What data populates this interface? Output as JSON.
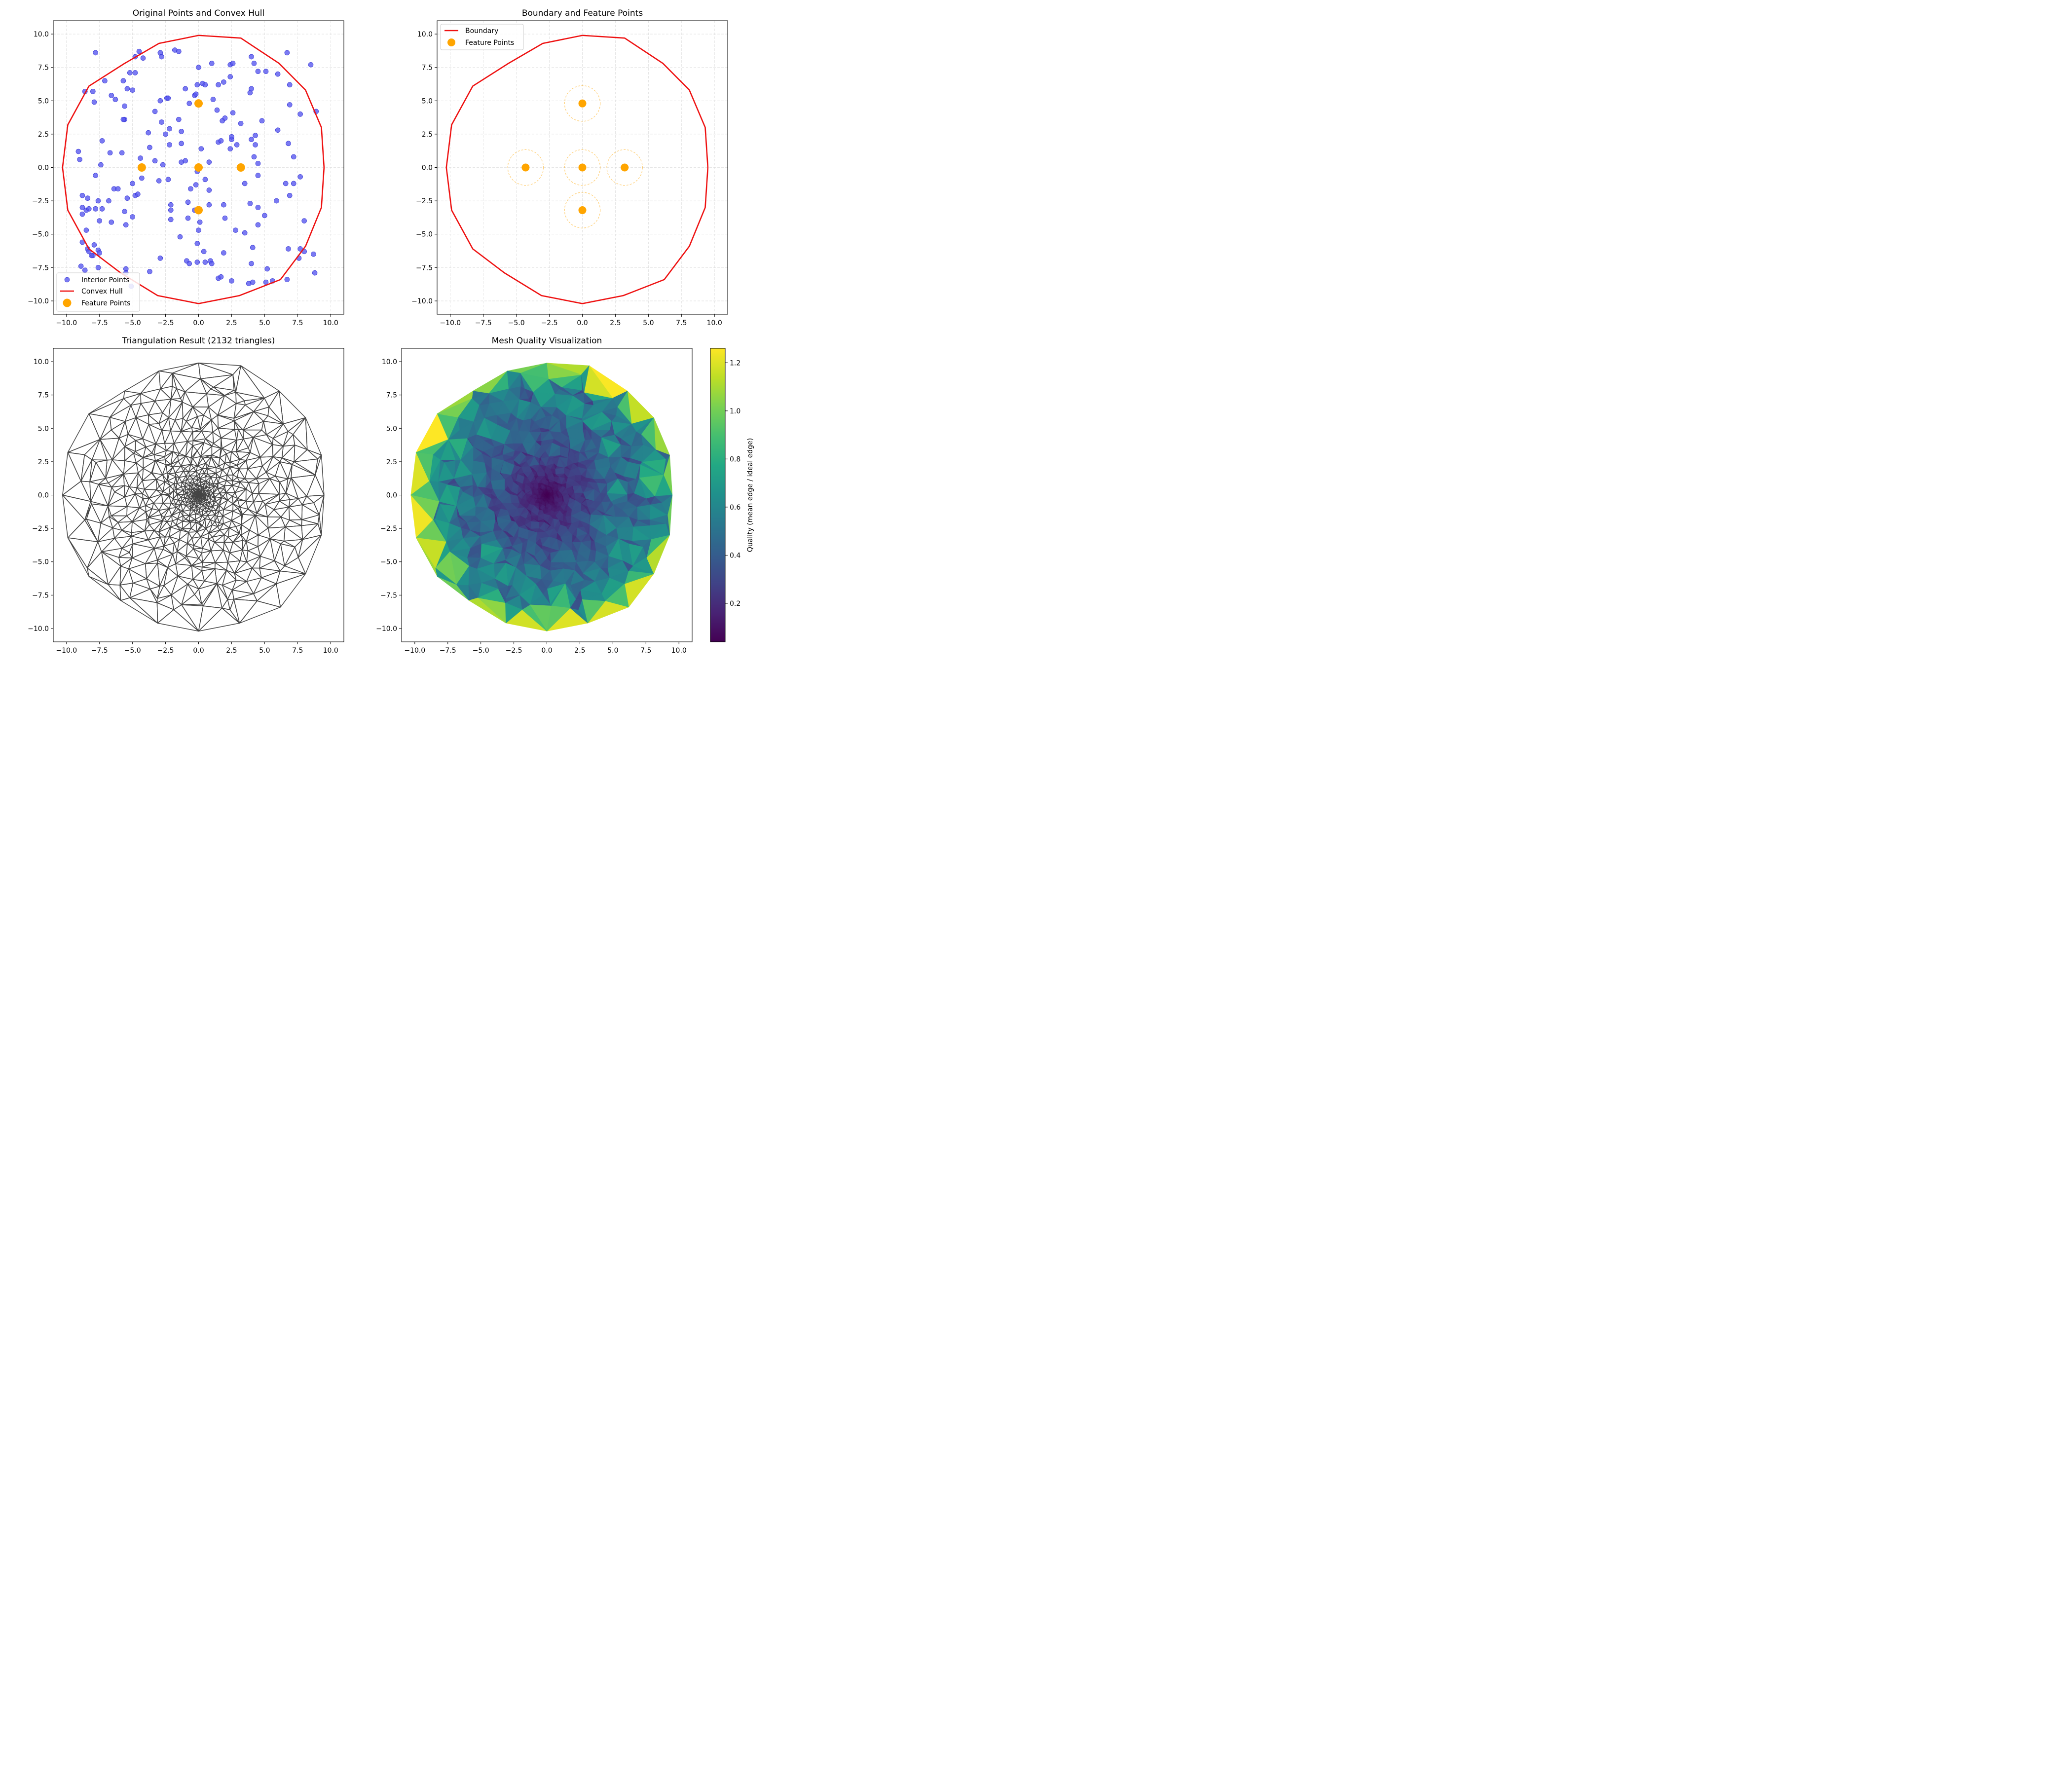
{
  "chart_data": [
    {
      "type": "scatter",
      "title": "Original Points and Convex Hull",
      "xlim": [
        -11,
        11
      ],
      "ylim": [
        -11,
        11
      ],
      "xticks": [
        -10.0,
        -7.5,
        -5.0,
        -2.5,
        0.0,
        2.5,
        5.0,
        7.5,
        10.0
      ],
      "yticks": [
        -10.0,
        -7.5,
        -5.0,
        -2.5,
        0.0,
        2.5,
        5.0,
        7.5,
        10.0
      ],
      "grid": true,
      "legend_position": "lower-left",
      "colors": {
        "interior": "#5555ee",
        "hull": "#ee1111",
        "feature": "#ffa500"
      },
      "series": [
        {
          "name": "Interior Points",
          "points": [
            [
              -7.8,
              8.6
            ],
            [
              -4.5,
              8.7
            ],
            [
              -4.2,
              8.2
            ],
            [
              -2.9,
              8.6
            ],
            [
              -1.8,
              8.8
            ],
            [
              -1.5,
              8.7
            ],
            [
              -2.8,
              8.3
            ],
            [
              -4.8,
              8.3
            ],
            [
              -5.2,
              7.1
            ],
            [
              -4.8,
              7.1
            ],
            [
              -7.1,
              6.5
            ],
            [
              -5.7,
              6.5
            ],
            [
              -6.6,
              5.4
            ],
            [
              -6.3,
              5.1
            ],
            [
              -5.4,
              5.9
            ],
            [
              -5.0,
              5.8
            ],
            [
              -8.6,
              5.7
            ],
            [
              -8.0,
              5.7
            ],
            [
              -7.9,
              4.9
            ],
            [
              -5.6,
              4.6
            ],
            [
              -5.6,
              3.6
            ],
            [
              -5.7,
              3.6
            ],
            [
              -3.3,
              4.2
            ],
            [
              -2.9,
              5.0
            ],
            [
              -2.4,
              5.2
            ],
            [
              -2.3,
              5.2
            ],
            [
              -1.0,
              5.9
            ],
            [
              -0.7,
              4.8
            ],
            [
              -0.3,
              5.4
            ],
            [
              -0.2,
              5.5
            ],
            [
              -0.1,
              6.2
            ],
            [
              0.3,
              6.3
            ],
            [
              0.5,
              6.2
            ],
            [
              0.0,
              7.5
            ],
            [
              1.0,
              7.8
            ],
            [
              1.5,
              6.2
            ],
            [
              1.9,
              6.4
            ],
            [
              2.4,
              6.8
            ],
            [
              2.4,
              7.7
            ],
            [
              2.6,
              7.8
            ],
            [
              4.0,
              8.3
            ],
            [
              4.2,
              7.8
            ],
            [
              4.5,
              7.2
            ],
            [
              5.1,
              7.2
            ],
            [
              6.7,
              8.6
            ],
            [
              8.5,
              7.7
            ],
            [
              6.0,
              7.0
            ],
            [
              6.9,
              6.2
            ],
            [
              3.9,
              5.6
            ],
            [
              4.0,
              5.9
            ],
            [
              1.1,
              5.1
            ],
            [
              1.4,
              4.3
            ],
            [
              1.8,
              3.5
            ],
            [
              2.0,
              3.7
            ],
            [
              2.6,
              4.1
            ],
            [
              3.2,
              3.3
            ],
            [
              4.8,
              3.5
            ],
            [
              6.0,
              2.8
            ],
            [
              6.9,
              4.7
            ],
            [
              7.7,
              4.0
            ],
            [
              8.9,
              4.2
            ],
            [
              6.8,
              1.8
            ],
            [
              7.2,
              0.8
            ],
            [
              -7.3,
              2.0
            ],
            [
              -6.7,
              1.1
            ],
            [
              -5.8,
              1.1
            ],
            [
              -3.8,
              2.6
            ],
            [
              -2.8,
              3.4
            ],
            [
              -2.5,
              2.5
            ],
            [
              -2.2,
              2.9
            ],
            [
              -2.2,
              1.7
            ],
            [
              -1.5,
              3.6
            ],
            [
              -1.3,
              2.7
            ],
            [
              -1.3,
              1.8
            ],
            [
              0.2,
              1.4
            ],
            [
              1.5,
              1.9
            ],
            [
              1.7,
              2.0
            ],
            [
              2.4,
              1.4
            ],
            [
              2.5,
              2.1
            ],
            [
              2.5,
              2.3
            ],
            [
              2.9,
              1.7
            ],
            [
              4.0,
              2.1
            ],
            [
              4.3,
              2.4
            ],
            [
              4.3,
              1.7
            ],
            [
              4.2,
              0.8
            ],
            [
              4.5,
              0.3
            ],
            [
              -9.1,
              1.2
            ],
            [
              -9.0,
              0.6
            ],
            [
              -7.4,
              0.2
            ],
            [
              -4.4,
              0.7
            ],
            [
              -3.7,
              1.5
            ],
            [
              -3.3,
              0.5
            ],
            [
              -2.7,
              0.2
            ],
            [
              -1.3,
              0.4
            ],
            [
              -1.0,
              0.5
            ],
            [
              0.8,
              0.4
            ],
            [
              -4.3,
              -0.8
            ],
            [
              -3.0,
              -1.0
            ],
            [
              -2.3,
              -0.9
            ],
            [
              -0.1,
              -0.3
            ],
            [
              0.5,
              -0.9
            ],
            [
              -0.2,
              -1.3
            ],
            [
              -0.6,
              -1.6
            ],
            [
              0.8,
              -1.7
            ],
            [
              -7.8,
              -0.6
            ],
            [
              -6.4,
              -1.6
            ],
            [
              -6.1,
              -1.6
            ],
            [
              -5.0,
              -1.2
            ],
            [
              3.5,
              -1.2
            ],
            [
              4.5,
              -0.6
            ],
            [
              6.6,
              -1.2
            ],
            [
              7.2,
              -1.2
            ],
            [
              7.7,
              -0.7
            ],
            [
              6.9,
              -2.1
            ],
            [
              5.9,
              -2.5
            ],
            [
              -8.8,
              -2.1
            ],
            [
              -8.4,
              -2.3
            ],
            [
              -7.6,
              -2.5
            ],
            [
              -6.8,
              -2.5
            ],
            [
              -5.4,
              -2.3
            ],
            [
              -4.8,
              -2.1
            ],
            [
              -4.6,
              -2.0
            ],
            [
              -2.1,
              -2.8
            ],
            [
              -2.1,
              -3.2
            ],
            [
              -0.8,
              -2.6
            ],
            [
              -0.3,
              -3.2
            ],
            [
              0.8,
              -2.8
            ],
            [
              1.9,
              -2.8
            ],
            [
              3.9,
              -2.7
            ],
            [
              4.5,
              -3.0
            ],
            [
              -8.8,
              -3.0
            ],
            [
              -8.8,
              -3.5
            ],
            [
              -8.5,
              -3.2
            ],
            [
              -8.3,
              -3.1
            ],
            [
              -7.8,
              -3.1
            ],
            [
              -7.3,
              -3.1
            ],
            [
              -5.6,
              -3.3
            ],
            [
              -5.0,
              -3.7
            ],
            [
              -2.1,
              -3.9
            ],
            [
              -0.8,
              -3.8
            ],
            [
              0.1,
              -4.1
            ],
            [
              2.0,
              -3.8
            ],
            [
              5.0,
              -3.6
            ],
            [
              -7.5,
              -4.0
            ],
            [
              -6.6,
              -4.1
            ],
            [
              -5.5,
              -4.3
            ],
            [
              0.0,
              -4.7
            ],
            [
              2.8,
              -4.7
            ],
            [
              3.5,
              -4.9
            ],
            [
              4.5,
              -4.3
            ],
            [
              8.0,
              -4.0
            ],
            [
              -8.5,
              -4.7
            ],
            [
              -1.4,
              -5.2
            ],
            [
              -8.8,
              -5.6
            ],
            [
              -8.4,
              -6.1
            ],
            [
              -8.3,
              -6.3
            ],
            [
              -7.9,
              -5.8
            ],
            [
              -7.6,
              -6.2
            ],
            [
              -7.5,
              -6.4
            ],
            [
              -8.0,
              -6.6
            ],
            [
              -8.1,
              -6.6
            ],
            [
              -0.1,
              -5.7
            ],
            [
              0.4,
              -6.3
            ],
            [
              1.9,
              -6.4
            ],
            [
              4.1,
              -6.0
            ],
            [
              6.8,
              -6.1
            ],
            [
              7.7,
              -6.1
            ],
            [
              8.0,
              -6.3
            ],
            [
              8.7,
              -6.5
            ],
            [
              7.6,
              -6.8
            ],
            [
              -2.9,
              -6.8
            ],
            [
              -0.9,
              -7.0
            ],
            [
              -0.7,
              -7.2
            ],
            [
              -0.1,
              -7.1
            ],
            [
              0.5,
              -7.1
            ],
            [
              0.9,
              -7.0
            ],
            [
              1.0,
              -7.2
            ],
            [
              4.0,
              -7.2
            ],
            [
              5.2,
              -7.6
            ],
            [
              -8.9,
              -7.4
            ],
            [
              -8.6,
              -7.7
            ],
            [
              -7.6,
              -7.5
            ],
            [
              -5.5,
              -7.6
            ],
            [
              -3.7,
              -7.8
            ],
            [
              -5.5,
              -7.9
            ],
            [
              -5.1,
              -8.9
            ],
            [
              1.5,
              -8.3
            ],
            [
              1.7,
              -8.2
            ],
            [
              2.5,
              -8.5
            ],
            [
              3.8,
              -8.7
            ],
            [
              4.1,
              -8.6
            ],
            [
              5.1,
              -8.6
            ],
            [
              5.6,
              -8.5
            ],
            [
              6.7,
              -8.4
            ],
            [
              8.8,
              -7.9
            ]
          ]
        },
        {
          "name": "Convex Hull",
          "points": [
            [
              0.0,
              9.9
            ],
            [
              3.2,
              9.7
            ],
            [
              6.1,
              7.8
            ],
            [
              8.1,
              5.8
            ],
            [
              9.3,
              3.0
            ],
            [
              9.5,
              0.0
            ],
            [
              9.3,
              -3.0
            ],
            [
              8.1,
              -5.9
            ],
            [
              6.2,
              -8.4
            ],
            [
              3.1,
              -9.6
            ],
            [
              0.0,
              -10.2
            ],
            [
              -3.1,
              -9.6
            ],
            [
              -5.9,
              -7.9
            ],
            [
              -8.3,
              -6.1
            ],
            [
              -9.9,
              -3.2
            ],
            [
              -10.3,
              0.0
            ],
            [
              -9.9,
              3.2
            ],
            [
              -8.3,
              6.1
            ],
            [
              -5.6,
              7.8
            ],
            [
              -3.0,
              9.3
            ],
            [
              0.0,
              9.9
            ]
          ]
        },
        {
          "name": "Feature Points",
          "points": [
            [
              0.0,
              4.8
            ],
            [
              -4.3,
              0.0
            ],
            [
              0.0,
              0.0
            ],
            [
              3.2,
              0.0
            ],
            [
              0.0,
              -3.2
            ]
          ]
        }
      ]
    },
    {
      "type": "line",
      "title": "Boundary and Feature Points",
      "xlim": [
        -11,
        11
      ],
      "ylim": [
        -11,
        11
      ],
      "xticks": [
        -10.0,
        -7.5,
        -5.0,
        -2.5,
        0.0,
        2.5,
        5.0,
        7.5,
        10.0
      ],
      "yticks": [
        -10.0,
        -7.5,
        -5.0,
        -2.5,
        0.0,
        2.5,
        5.0,
        7.5,
        10.0
      ],
      "grid": true,
      "legend_position": "upper-left",
      "feature_radius": 1.35,
      "series": [
        {
          "name": "Boundary",
          "points": [
            [
              0.0,
              9.9
            ],
            [
              3.2,
              9.7
            ],
            [
              6.1,
              7.8
            ],
            [
              8.1,
              5.8
            ],
            [
              9.3,
              3.0
            ],
            [
              9.5,
              0.0
            ],
            [
              9.3,
              -3.0
            ],
            [
              8.1,
              -5.9
            ],
            [
              6.2,
              -8.4
            ],
            [
              3.1,
              -9.6
            ],
            [
              0.0,
              -10.2
            ],
            [
              -3.1,
              -9.6
            ],
            [
              -5.9,
              -7.9
            ],
            [
              -8.3,
              -6.1
            ],
            [
              -9.9,
              -3.2
            ],
            [
              -10.3,
              0.0
            ],
            [
              -9.9,
              3.2
            ],
            [
              -8.3,
              6.1
            ],
            [
              -5.6,
              7.8
            ],
            [
              -3.0,
              9.3
            ],
            [
              0.0,
              9.9
            ]
          ]
        },
        {
          "name": "Feature Points",
          "points": [
            [
              0.0,
              4.8
            ],
            [
              -4.3,
              0.0
            ],
            [
              0.0,
              0.0
            ],
            [
              3.2,
              0.0
            ],
            [
              0.0,
              -3.2
            ]
          ]
        }
      ]
    },
    {
      "type": "mesh",
      "title": "Triangulation Result (2132 triangles)",
      "triangle_count": 2132,
      "xlim": [
        -11,
        11
      ],
      "ylim": [
        -11,
        11
      ],
      "xticks": [
        -10.0,
        -7.5,
        -5.0,
        -2.5,
        0.0,
        2.5,
        5.0,
        7.5,
        10.0
      ],
      "yticks": [
        -10.0,
        -7.5,
        -5.0,
        -2.5,
        0.0,
        2.5,
        5.0,
        7.5,
        10.0
      ],
      "grid": false,
      "edge_color": "#444444"
    },
    {
      "type": "heatmap",
      "title": "Mesh Quality Visualization",
      "xlim": [
        -11,
        11
      ],
      "ylim": [
        -11,
        11
      ],
      "xticks": [
        -10.0,
        -7.5,
        -5.0,
        -2.5,
        0.0,
        2.5,
        5.0,
        7.5,
        10.0
      ],
      "yticks": [
        -10.0,
        -7.5,
        -5.0,
        -2.5,
        0.0,
        2.5,
        5.0,
        7.5,
        10.0
      ],
      "colormap": "viridis",
      "colorbar": {
        "label": "Quality (mean edge / ideal edge)",
        "range": [
          0.04,
          1.26
        ],
        "ticks": [
          0.2,
          0.4,
          0.6,
          0.8,
          1.0,
          1.2
        ]
      }
    }
  ]
}
